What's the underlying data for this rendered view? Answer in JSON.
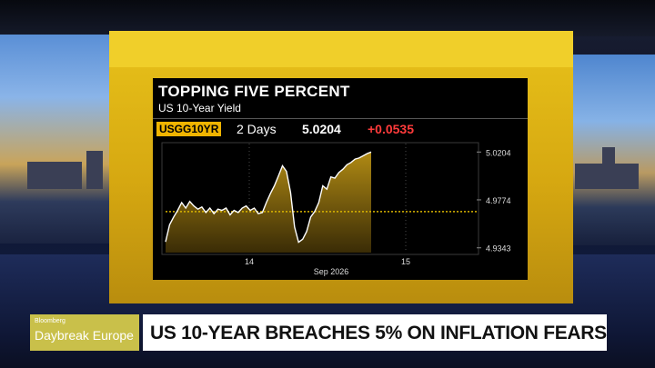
{
  "graphic": {
    "title": "TOPPING FIVE PERCENT",
    "subtitle": "US 10-Year Yield",
    "ticker": "USGG10YR",
    "period": "2 Days",
    "last_value": "5.0204",
    "change": "+0.0535"
  },
  "lower_third": {
    "brand_small": "Bloomberg",
    "brand_show": "Daybreak Europe",
    "headline": "US 10-YEAR BREACHES 5% ON INFLATION FEARS"
  },
  "colors": {
    "ticker_bg": "#f0b400",
    "change": "#ff3b3b",
    "area_fill": "#8a6a10",
    "line": "#ffffff",
    "reference_line": "#d9b400"
  },
  "chart_data": {
    "type": "area",
    "title": "TOPPING FIVE PERCENT",
    "subtitle": "US 10-Year Yield",
    "x_tick_labels": [
      "14",
      "15"
    ],
    "x_sub_label": "Sep 2026",
    "y_tick_labels": [
      "5.0204",
      "4.9774",
      "4.9343"
    ],
    "ylim": [
      4.93,
      5.028
    ],
    "reference_value": 4.9669,
    "series": [
      {
        "values": [
          4.9396,
          4.955,
          4.962,
          4.968,
          4.975,
          4.97,
          4.976,
          4.972,
          4.969,
          4.971,
          4.966,
          4.97,
          4.965,
          4.969,
          4.968,
          4.97,
          4.964,
          4.968,
          4.966,
          4.97,
          4.972,
          4.968,
          4.97,
          4.965,
          4.966,
          4.975,
          4.983,
          4.99,
          4.999,
          5.008,
          5.003,
          4.984,
          4.953,
          4.9393,
          4.942,
          4.949,
          4.962,
          4.967,
          4.975,
          4.99,
          4.987,
          4.998,
          4.997,
          5.002,
          5.005,
          5.009,
          5.011,
          5.014,
          5.015,
          5.017,
          5.019,
          5.0204
        ]
      }
    ]
  }
}
